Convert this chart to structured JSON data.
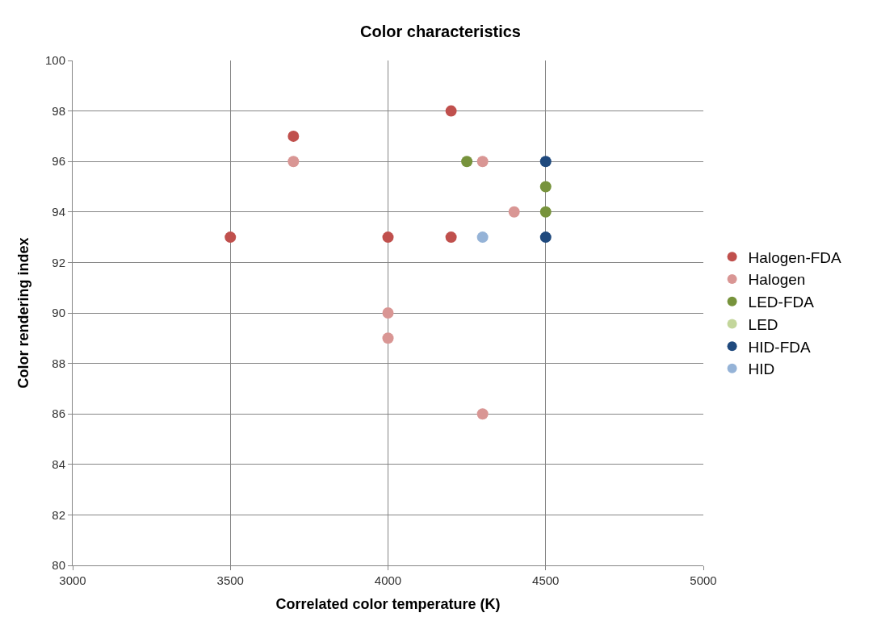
{
  "chart_data": {
    "type": "scatter",
    "title": "Color characteristics",
    "xlabel": "Correlated color temperature (K)",
    "ylabel": "Color rendering index",
    "xlim": [
      3000,
      5000
    ],
    "xticks": [
      3000,
      3500,
      4000,
      4500,
      5000
    ],
    "ylim": [
      80,
      100
    ],
    "yticks": [
      80,
      82,
      84,
      86,
      88,
      90,
      92,
      94,
      96,
      98,
      100
    ],
    "grid": true,
    "legend": "right",
    "marker": "circle",
    "series": [
      {
        "name": "Halogen-FDA",
        "color": "#c0504d",
        "x": [
          3700,
          4200,
          3500,
          4000,
          4200
        ],
        "values": [
          97,
          98,
          93,
          93,
          93
        ]
      },
      {
        "name": "Halogen",
        "color": "#d99694",
        "x": [
          3700,
          4300,
          4400,
          4000,
          4000,
          4300
        ],
        "values": [
          96,
          96,
          94,
          90,
          89,
          86
        ]
      },
      {
        "name": "LED-FDA",
        "color": "#77933c",
        "x": [
          4250,
          4500,
          4500
        ],
        "values": [
          96,
          95,
          94
        ]
      },
      {
        "name": "LED",
        "color": "#c3d69b"
      },
      {
        "name": "HID-FDA",
        "color": "#1f497d",
        "x": [
          4500,
          4500
        ],
        "values": [
          96,
          93
        ]
      },
      {
        "name": "HID",
        "color": "#95b3d7",
        "x": [
          4300
        ],
        "values": [
          93
        ]
      }
    ]
  }
}
